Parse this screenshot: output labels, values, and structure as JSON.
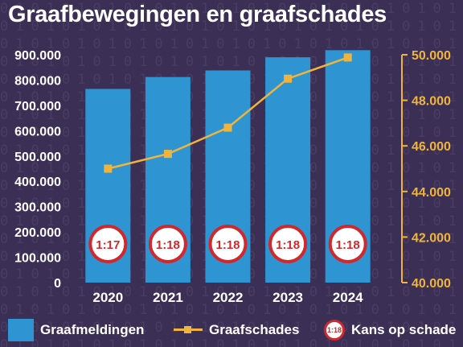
{
  "title": "Graafbewegingen en graafschades",
  "legend": {
    "bars": "Graafmeldingen",
    "line": "Graafschades",
    "badge_sample": "1:18",
    "badge": "Kans op schade"
  },
  "colors": {
    "background": "#3b2f55",
    "bars": "#2f95d2",
    "line": "#f0b43c",
    "right_axis_labels": "#f0b43c",
    "badge_ring": "#d0282d",
    "badge_fill": "#ffffff"
  },
  "chart_data": {
    "type": "bar",
    "title": "Graafbewegingen en graafschades",
    "categories": [
      "2020",
      "2021",
      "2022",
      "2023",
      "2024"
    ],
    "series": [
      {
        "name": "Graafmeldingen",
        "type": "bar",
        "axis": "left",
        "values": [
          765000,
          812000,
          838000,
          890000,
          918000
        ]
      },
      {
        "name": "Graafschades",
        "type": "line",
        "axis": "right",
        "values": [
          45000,
          45650,
          46800,
          48950,
          49880
        ]
      }
    ],
    "badges": {
      "name": "Kans op schade",
      "values": [
        "1:17",
        "1:18",
        "1:18",
        "1:18",
        "1:18"
      ]
    },
    "y_left": {
      "min": 0,
      "max": 900000,
      "ticks": [
        "0",
        "100.000",
        "200.000",
        "300.000",
        "400.000",
        "500.000",
        "600.000",
        "700.000",
        "800.000",
        "900.000"
      ]
    },
    "y_right": {
      "min": 40000,
      "max": 50000,
      "ticks": [
        "40.000",
        "42.000",
        "44.000",
        "46.000",
        "48.000",
        "50.000"
      ]
    },
    "grid": false,
    "legend_position": "bottom"
  }
}
